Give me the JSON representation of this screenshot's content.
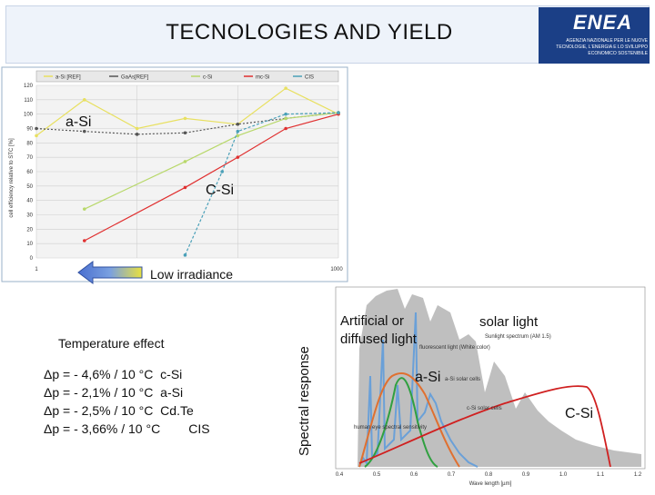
{
  "title": "TECNOLOGIES AND YIELD",
  "logo": {
    "brand": "ENEA",
    "subtitle": "AGENZIA NAZIONALE PER LE NUOVE TECNOLOGIE, L'ENERGIA E LO SVILUPPO ECONOMICO SOSTENIBILE",
    "color": "#1b3f86"
  },
  "efficiency_chart": {
    "ylabel": "cell efficiency relative to STC [%]",
    "x_min_label": "1",
    "x_max_label": "1000",
    "yticks": [
      "120",
      "110",
      "100",
      "90",
      "80",
      "70",
      "60",
      "50",
      "40",
      "30",
      "20",
      "10",
      "0"
    ],
    "legend": [
      "a-Si [REF]",
      "GaAs[REF]",
      "c-Si",
      "mc-Si",
      "CIS"
    ]
  },
  "chart_data": {
    "type": "line",
    "ylabel": "cell efficiency relative to STC [%]",
    "ylim": [
      0,
      120
    ],
    "x_scale": "log",
    "xlim": [
      1,
      1000
    ],
    "series": [
      {
        "name": "a-Si [REF]",
        "color": "#e8e060",
        "x": [
          1,
          3,
          10,
          30,
          100,
          300,
          1000
        ],
        "values": [
          85,
          110,
          90,
          97,
          93,
          118,
          100
        ]
      },
      {
        "name": "GaAs[REF]",
        "color": "#555555",
        "x": [
          1,
          3,
          10,
          30,
          100,
          300,
          1000
        ],
        "values": [
          90,
          88,
          86,
          87,
          93,
          97,
          101
        ]
      },
      {
        "name": "c-Si",
        "color": "#b8d86a",
        "x": [
          3,
          30,
          100,
          300,
          1000
        ],
        "values": [
          34,
          67,
          85,
          97,
          101
        ]
      },
      {
        "name": "mc-Si",
        "color": "#e03030",
        "x": [
          3,
          30,
          100,
          300,
          1000
        ],
        "values": [
          12,
          49,
          70,
          90,
          100
        ]
      },
      {
        "name": "CIS",
        "color": "#4aa0b8",
        "x": [
          30,
          70,
          100,
          300,
          1000
        ],
        "values": [
          2,
          60,
          88,
          100,
          101
        ]
      }
    ]
  },
  "annotations": {
    "asi": "a-Si",
    "csi": "C-Si",
    "low_irradiance": "Low irradiance"
  },
  "temperature": {
    "heading": "Temperature effect",
    "lines": [
      "Δp = - 4,6% / 10 °C  c-Si",
      "Δp = - 2,1% / 10 °C  a-Si",
      "Δp = - 2,5% / 10 °C  Cd.Te",
      "Δp = - 3,66% / 10 °C        CIS"
    ]
  },
  "spectral": {
    "ylabel": "Spectral response",
    "artificial": "Artificial or diffused light",
    "solar_light": "solar light",
    "asi": "a-Si",
    "csi": "C-Si",
    "sunlight_spectrum": "Sunlight spectrum (AM 1.5)",
    "fluorescent": "fluorescent light (White color)",
    "asi_cells": "a-Si solar cells",
    "csi_cells": "c-Si solar cells",
    "human_eye": "human eye spectral sensitivity",
    "xlabel": "Wave length [µm]",
    "xticks": [
      "0.4",
      "0.5",
      "0.6",
      "0.7",
      "0.8",
      "0.9",
      "1.0",
      "1.1",
      "1.2"
    ]
  }
}
